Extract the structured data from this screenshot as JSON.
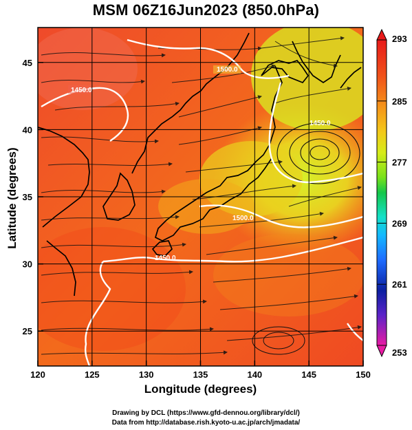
{
  "title": "MSM 06Z16Jun2023 (850.0hPa)",
  "x_axis": {
    "label": "Longitude (degrees)",
    "ticks": [
      "120",
      "125",
      "130",
      "135",
      "140",
      "145",
      "150"
    ],
    "range": [
      120,
      150
    ]
  },
  "y_axis": {
    "label": "Latitude  (degrees)",
    "ticks": [
      "25",
      "30",
      "35",
      "40",
      "45"
    ],
    "range": [
      22.4,
      47.6
    ]
  },
  "colorbar": {
    "ticks": [
      "293",
      "285",
      "277",
      "269",
      "261",
      "253"
    ],
    "range": [
      253,
      293
    ],
    "colors": [
      "#e81aa3",
      "#8a2be2",
      "#0b1fa0",
      "#1e6cff",
      "#14b8ff",
      "#14e0c8",
      "#12c74a",
      "#7be11a",
      "#d8ec1a",
      "#f7c21a",
      "#f58a1a",
      "#ee4b1a",
      "#e81a1a"
    ]
  },
  "contour_labels": [
    "1450.0",
    "1500.0",
    "1500.0",
    "1450.0",
    "1450.0"
  ],
  "credits": {
    "line1": "Drawing by DCL (https://www.gfd-dennou.org/library/dcl/)",
    "line2": "Data from http://database.rish.kyoto-u.ac.jp/arch/jmadata/"
  }
}
